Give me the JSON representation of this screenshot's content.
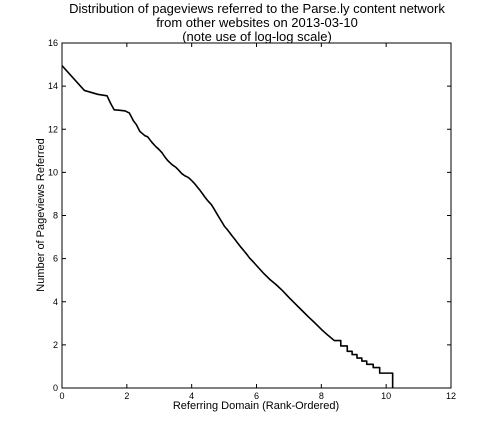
{
  "chart_data": {
    "type": "line",
    "title": [
      "Distribution of pageviews referred to the Parse.ly content network",
      "from other websites on 2013-03-10",
      "(note use of log-log scale)"
    ],
    "xlabel": "Referring Domain (Rank-Ordered)",
    "ylabel": "Number of Pageviews Referred",
    "xlim": [
      0,
      12
    ],
    "ylim": [
      0,
      16
    ],
    "xticks": [
      0,
      2,
      4,
      6,
      8,
      10,
      12
    ],
    "yticks": [
      0,
      2,
      4,
      6,
      8,
      10,
      12,
      14,
      16
    ],
    "grid": false,
    "legend": "none",
    "line_color": "#000000",
    "series": [
      {
        "x": [
          0,
          0.69,
          1.1,
          1.39,
          1.5,
          1.61,
          1.79,
          1.95,
          2.08,
          2.2,
          2.3,
          2.4,
          2.48,
          2.56,
          2.64,
          2.77,
          2.89,
          3.0,
          3.09,
          3.18,
          3.26,
          3.33,
          3.4,
          3.5,
          3.6,
          3.69,
          3.78,
          3.85,
          3.91,
          4.0,
          4.09,
          4.17,
          4.25,
          4.33,
          4.4,
          4.5,
          4.61,
          4.7,
          4.79,
          4.87,
          4.94,
          5.01,
          5.08,
          5.16,
          5.25,
          5.34,
          5.42,
          5.52,
          5.62,
          5.7,
          5.79,
          5.9,
          6.0,
          6.2,
          6.4,
          6.6,
          6.8,
          7.0,
          7.2,
          7.4,
          7.6,
          7.8,
          8.0,
          8.2,
          8.4,
          8.6,
          8.8,
          8.95,
          9.1,
          9.25,
          9.4,
          9.6,
          9.8,
          10.2,
          10.2
        ],
        "y": [
          14.95,
          13.8,
          13.62,
          13.55,
          13.2,
          12.9,
          12.88,
          12.85,
          12.75,
          12.4,
          12.2,
          11.9,
          11.8,
          11.7,
          11.65,
          11.4,
          11.2,
          11.05,
          10.9,
          10.7,
          10.55,
          10.45,
          10.35,
          10.25,
          10.1,
          9.95,
          9.85,
          9.8,
          9.75,
          9.62,
          9.48,
          9.33,
          9.18,
          9.02,
          8.87,
          8.68,
          8.5,
          8.28,
          8.05,
          7.85,
          7.68,
          7.5,
          7.38,
          7.23,
          7.05,
          6.88,
          6.72,
          6.53,
          6.35,
          6.2,
          6.02,
          5.85,
          5.68,
          5.35,
          5.05,
          4.8,
          4.52,
          4.2,
          3.9,
          3.6,
          3.3,
          3.02,
          2.72,
          2.45,
          2.2,
          1.95,
          1.7,
          1.55,
          1.39,
          1.25,
          1.1,
          0.95,
          0.69,
          0.69,
          0
        ]
      }
    ]
  }
}
